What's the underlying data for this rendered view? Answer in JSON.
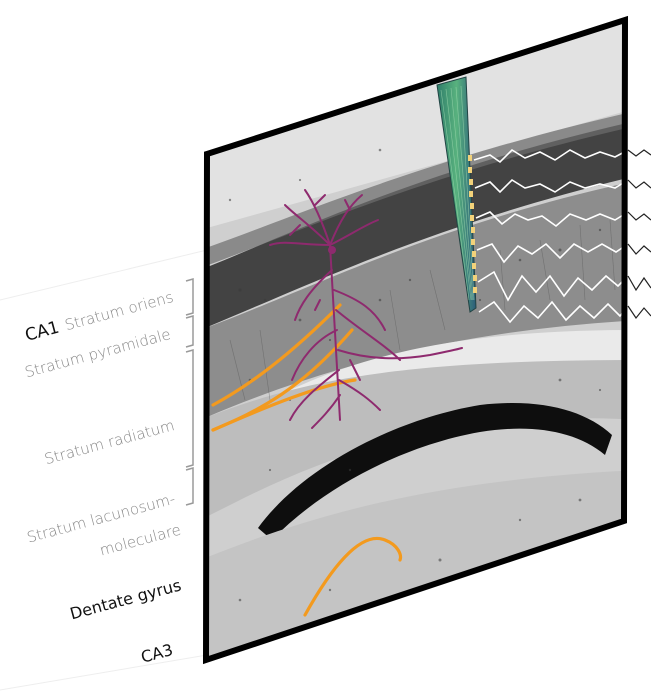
{
  "labels": {
    "ca1": "CA1",
    "stratum_oriens": "Stratum oriens",
    "stratum_pyramidale": "Stratum pyramidale",
    "stratum_radiatum": "Stratum radiatum",
    "stratum_lacunosum_line1": "Stratum lacunosum-",
    "stratum_lacunosum_line2": "moleculare",
    "dentate_gyrus": "Dentate gyrus",
    "ca3": "CA3"
  },
  "colors": {
    "neuron": "#8e2a6e",
    "axons": "#f39a1e",
    "probe": "#3f9e8a",
    "traces": "#ffffff",
    "frame": "#000000",
    "label_gray": "#8a8a8a",
    "label_dark": "#111111"
  },
  "icons": {
    "neuron": "pyramidal-neuron-icon",
    "probe": "silicon-probe-icon",
    "traces": "lfp-traces-icon"
  }
}
